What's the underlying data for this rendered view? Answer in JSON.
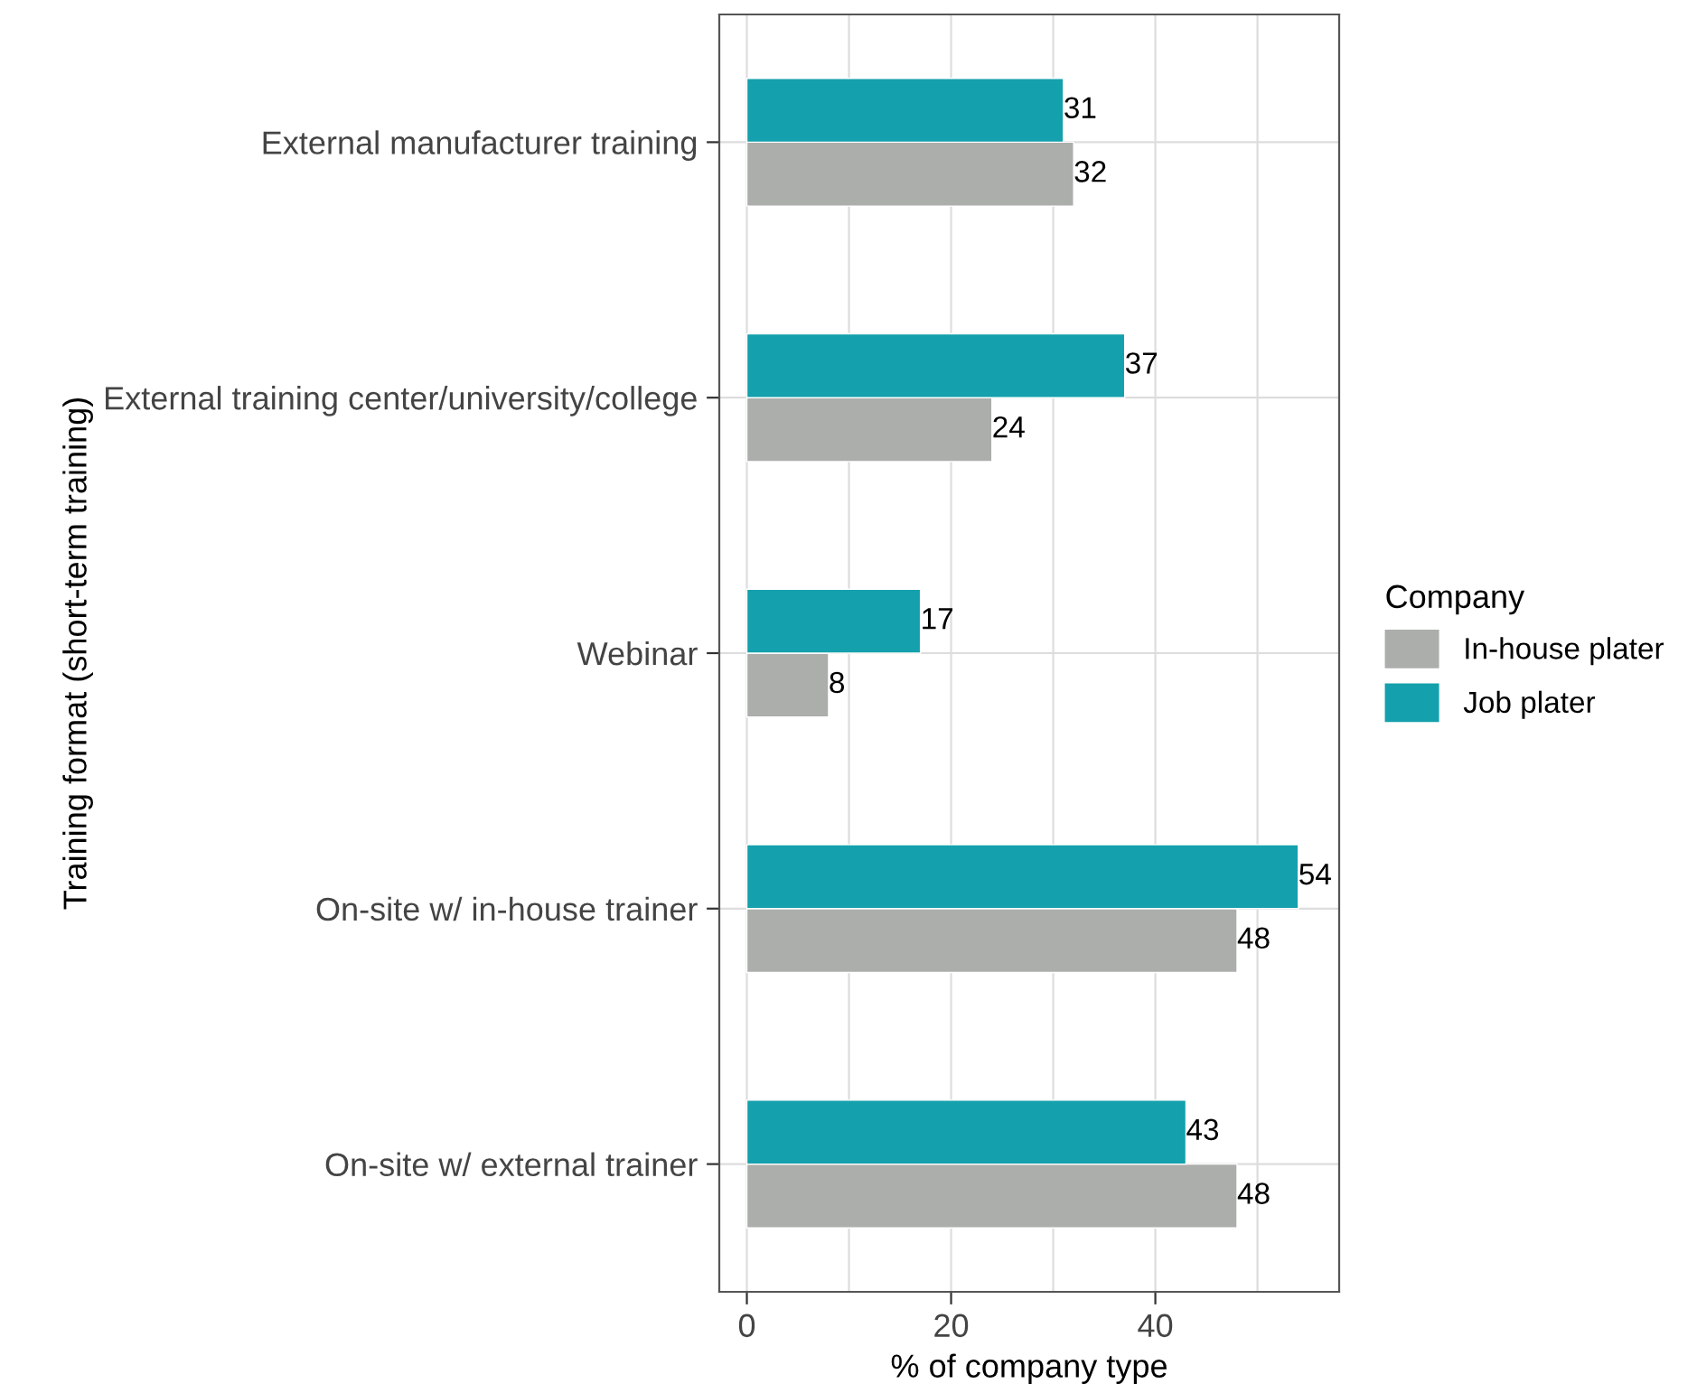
{
  "chart_data": {
    "type": "bar",
    "orientation": "horizontal",
    "xlabel": "% of company type",
    "ylabel": "Training format (short-term training)",
    "legend_title": "Company",
    "categories": [
      "External manufacturer training",
      "External training center/university/college",
      "Webinar",
      "On-site w/ in-house trainer",
      "On-site w/ external trainer"
    ],
    "series": [
      {
        "name": "In-house plater",
        "color": "#abaeab",
        "values": [
          32,
          24,
          8,
          48,
          48
        ]
      },
      {
        "name": "Job plater",
        "color": "#14a0ac",
        "values": [
          31,
          37,
          17,
          54,
          43
        ]
      }
    ],
    "xlim": [
      -2.7,
      58
    ],
    "xticks": [
      0,
      {
        "value": 10,
        "label": null
      },
      20,
      {
        "value": 30,
        "label": null
      },
      40,
      {
        "value": 50,
        "label": null
      }
    ],
    "grid": true,
    "legend": "right",
    "data_labels": true
  }
}
